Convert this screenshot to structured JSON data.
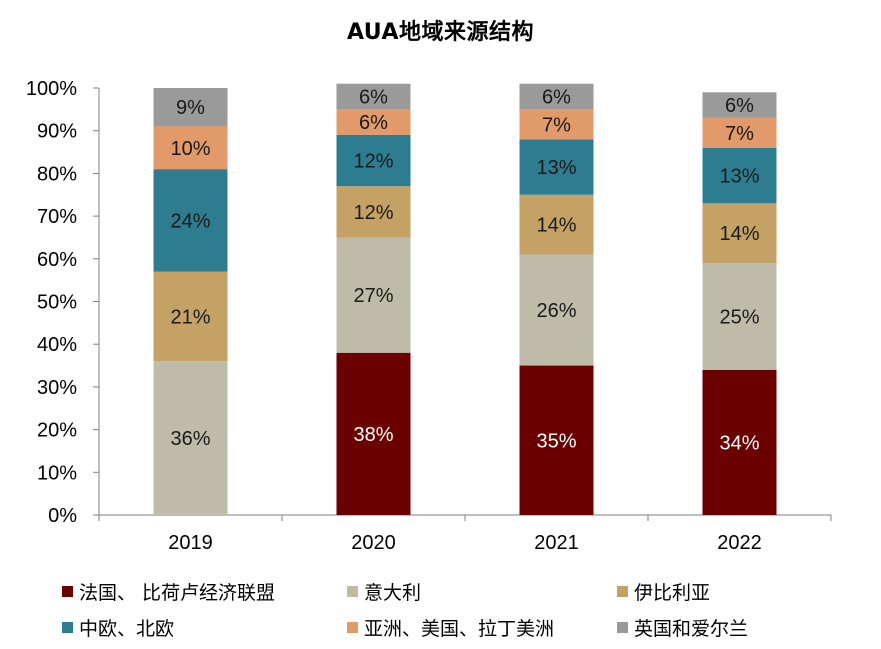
{
  "chart_data": {
    "type": "bar",
    "stacked": true,
    "title": "AUA地域来源结构",
    "xlabel": "",
    "ylabel": "",
    "ylim": [
      0,
      100
    ],
    "yticks": [
      "0%",
      "10%",
      "20%",
      "30%",
      "40%",
      "50%",
      "60%",
      "70%",
      "80%",
      "90%",
      "100%"
    ],
    "categories": [
      "2019",
      "2020",
      "2021",
      "2022"
    ],
    "series": [
      {
        "name": "法国、 比荷卢经济联盟",
        "color": "#6B0000",
        "label_color": "#ffffff",
        "values": [
          0,
          38,
          35,
          34
        ],
        "labels": [
          "",
          "38%",
          "35%",
          "34%"
        ]
      },
      {
        "name": "意大利",
        "color": "#BEBCA8",
        "label_color": "#1a1a1a",
        "values": [
          36,
          27,
          26,
          25
        ],
        "labels": [
          "36%",
          "27%",
          "26%",
          "25%"
        ]
      },
      {
        "name": "伊比利亚",
        "color": "#C4A266",
        "label_color": "#1a1a1a",
        "values": [
          21,
          12,
          14,
          14
        ],
        "labels": [
          "21%",
          "12%",
          "14%",
          "14%"
        ]
      },
      {
        "name": "中欧、北欧",
        "color": "#2E7C90",
        "label_color": "#1a1a1a",
        "values": [
          24,
          12,
          13,
          13
        ],
        "labels": [
          "24%",
          "12%",
          "13%",
          "13%"
        ]
      },
      {
        "name": "亚洲、美国、拉丁美洲",
        "color": "#E39A6A",
        "label_color": "#1a1a1a",
        "values": [
          10,
          6,
          7,
          7
        ],
        "labels": [
          "10%",
          "6%",
          "7%",
          "7%"
        ]
      },
      {
        "name": "英国和爱尔兰",
        "color": "#9A9A9A",
        "label_color": "#1a1a1a",
        "values": [
          9,
          6,
          6,
          6
        ],
        "labels": [
          "9%",
          "6%",
          "6%",
          "6%"
        ]
      }
    ],
    "legend_position": "bottom",
    "grid": false
  }
}
